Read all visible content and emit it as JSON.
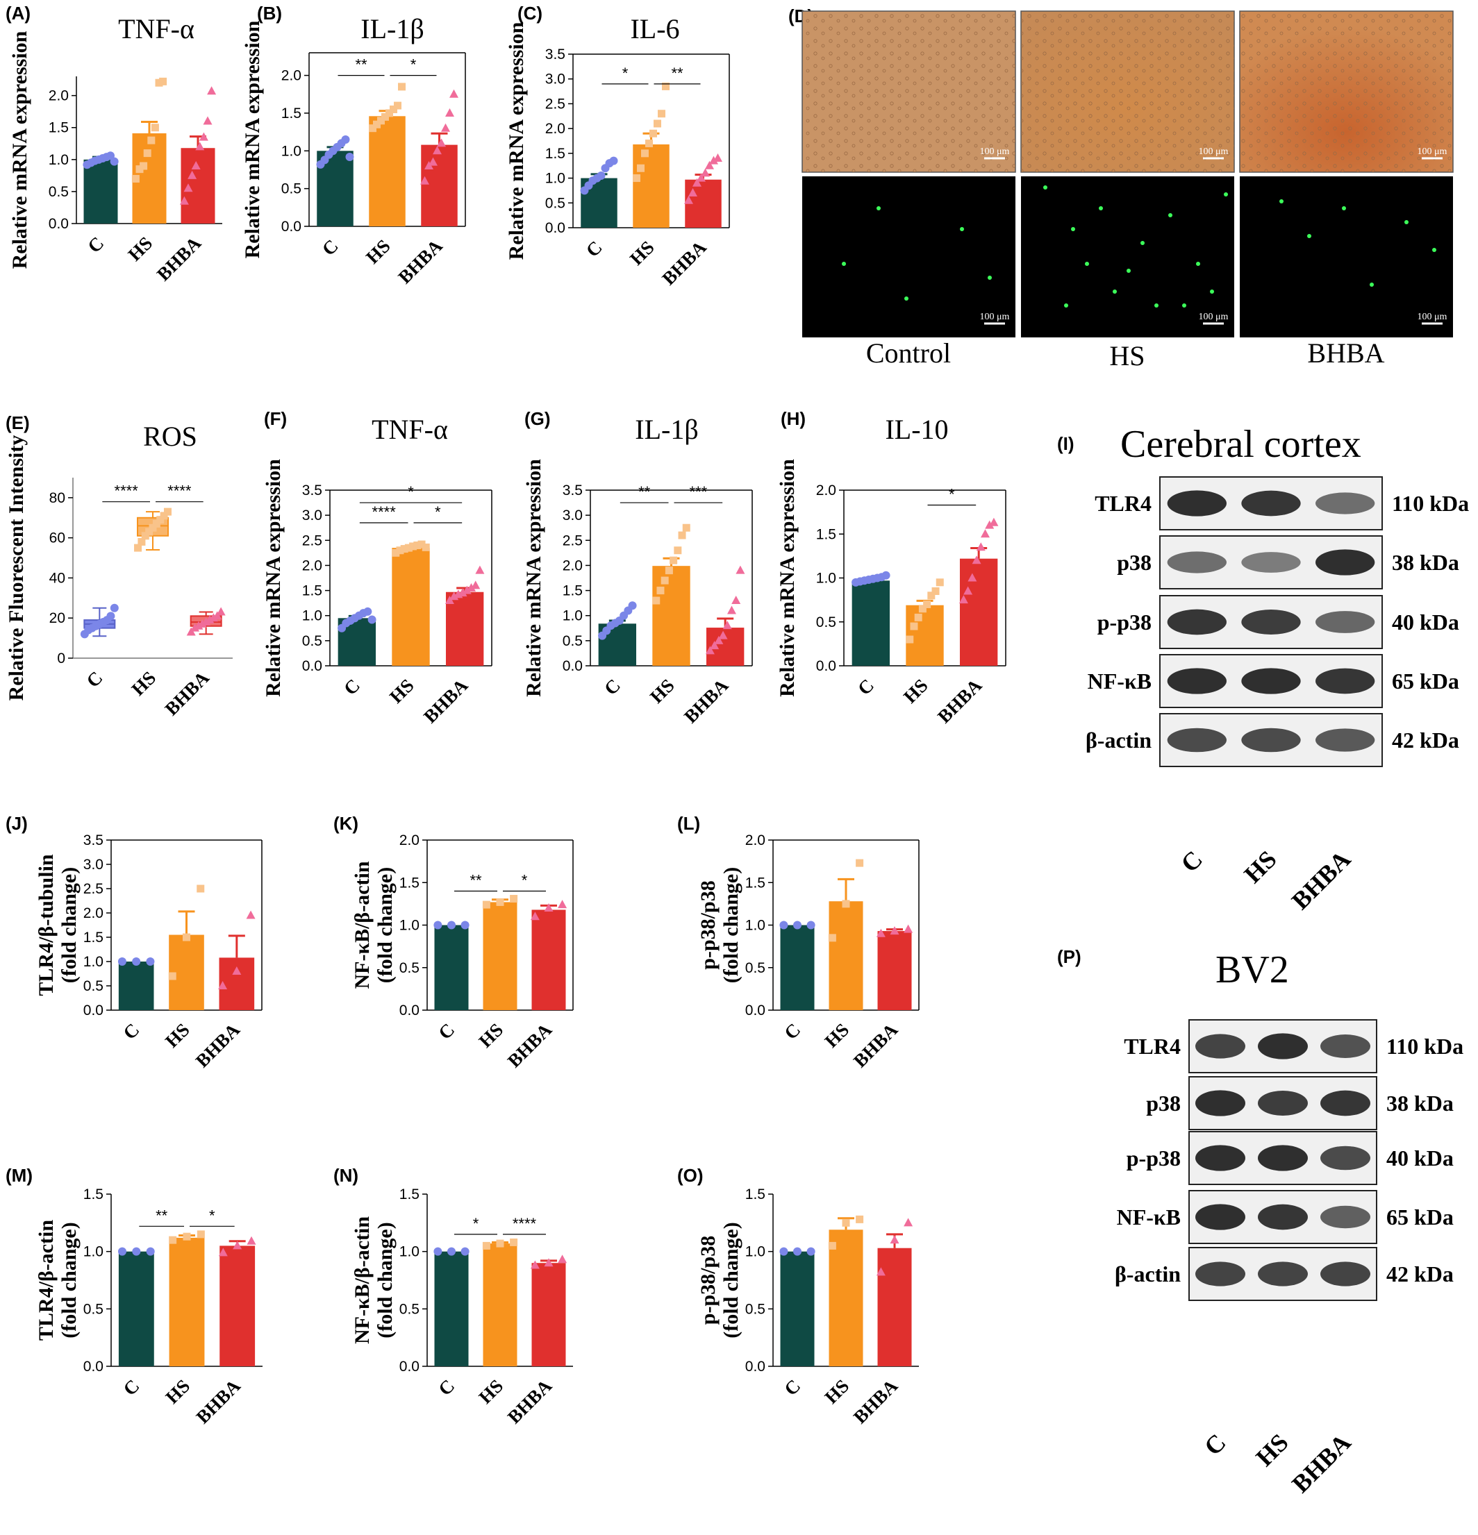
{
  "colors": {
    "C": "#0f4a44",
    "HS": "#f7931e",
    "BHBA": "#e0302e",
    "C_pt": "#7b86e8",
    "HS_pt": "#f9c38a",
    "BHBA_pt": "#f06c9a"
  },
  "chart_data": [
    {
      "id": "A",
      "type": "bar",
      "label": "(A)",
      "title": "TNF-α",
      "ylabel": "Relative mRNA expression",
      "categories": [
        "C",
        "HS",
        "BHBA"
      ],
      "values": [
        1.0,
        1.41,
        1.18
      ],
      "errors": [
        0.04,
        0.18,
        0.18
      ],
      "ylim": [
        0,
        2.3
      ],
      "ticks": [
        "0.0",
        "0.5",
        "1.0",
        "1.5",
        "2.0"
      ],
      "tickvals": [
        0,
        0.5,
        1,
        1.5,
        2
      ],
      "points": [
        [
          0.92,
          0.95,
          0.98,
          1.0,
          1.02,
          1.04,
          1.06,
          0.97
        ],
        [
          0.7,
          0.85,
          0.9,
          1.1,
          1.3,
          1.5,
          2.2,
          2.22
        ],
        [
          0.35,
          0.55,
          0.75,
          0.9,
          1.2,
          1.35,
          1.6,
          2.07
        ]
      ],
      "sig": []
    },
    {
      "id": "B",
      "type": "bar",
      "label": "(B)",
      "title": "IL-1β",
      "ylabel": "Relative mRNA expression",
      "categories": [
        "C",
        "HS",
        "BHBA"
      ],
      "values": [
        1.0,
        1.46,
        1.08
      ],
      "errors": [
        0.05,
        0.07,
        0.15
      ],
      "ylim": [
        0,
        2.3
      ],
      "ticks": [
        "0.0",
        "0.5",
        "1.0",
        "1.5",
        "2.0"
      ],
      "tickvals": [
        0,
        0.5,
        1,
        1.5,
        2
      ],
      "points": [
        [
          0.82,
          0.88,
          0.95,
          1.0,
          1.05,
          1.1,
          1.15,
          0.92
        ],
        [
          1.3,
          1.35,
          1.4,
          1.45,
          1.5,
          1.55,
          1.6,
          1.85
        ],
        [
          0.6,
          0.8,
          0.85,
          1.0,
          1.1,
          1.3,
          1.5,
          1.75
        ]
      ],
      "sig": [
        {
          "from": 0,
          "to": 1,
          "y": 2.0,
          "text": "**"
        },
        {
          "from": 1,
          "to": 2,
          "y": 2.0,
          "text": "*"
        }
      ]
    },
    {
      "id": "C",
      "type": "bar",
      "label": "(C)",
      "title": "IL-6",
      "ylabel": "Relative mRNA expression",
      "categories": [
        "C",
        "HS",
        "BHBA"
      ],
      "values": [
        1.0,
        1.68,
        0.97
      ],
      "errors": [
        0.08,
        0.22,
        0.1
      ],
      "ylim": [
        0,
        3.5
      ],
      "ticks": [
        "0.0",
        "0.5",
        "1.0",
        "1.5",
        "2.0",
        "2.5",
        "3.0",
        "3.5"
      ],
      "tickvals": [
        0,
        0.5,
        1,
        1.5,
        2,
        2.5,
        3,
        3.5
      ],
      "points": [
        [
          0.75,
          0.85,
          0.95,
          1.0,
          1.05,
          1.2,
          1.3,
          1.35
        ],
        [
          1.0,
          1.2,
          1.5,
          1.7,
          1.9,
          2.1,
          2.3,
          2.85
        ],
        [
          0.55,
          0.7,
          0.9,
          1.0,
          1.1,
          1.25,
          1.35,
          1.4
        ]
      ],
      "sig": [
        {
          "from": 0,
          "to": 1,
          "y": 2.9,
          "text": "*"
        },
        {
          "from": 1,
          "to": 2,
          "y": 2.9,
          "text": "**"
        }
      ]
    },
    {
      "id": "F",
      "type": "bar",
      "label": "(F)",
      "title": "TNF-α",
      "ylabel": "Relative mRNA expression",
      "categories": [
        "C",
        "HS",
        "BHBA"
      ],
      "values": [
        0.95,
        2.35,
        1.47
      ],
      "errors": [
        0.04,
        0.03,
        0.08
      ],
      "ylim": [
        0,
        3.5
      ],
      "ticks": [
        "0.0",
        "0.5",
        "1.0",
        "1.5",
        "2.0",
        "2.5",
        "3.0",
        "3.5"
      ],
      "tickvals": [
        0,
        0.5,
        1,
        1.5,
        2,
        2.5,
        3,
        3.5
      ],
      "points": [
        [
          0.75,
          0.85,
          0.9,
          0.95,
          1.0,
          1.05,
          1.08,
          0.92
        ],
        [
          2.25,
          2.3,
          2.33,
          2.35,
          2.38,
          2.4,
          2.42,
          2.36
        ],
        [
          1.3,
          1.38,
          1.42,
          1.45,
          1.5,
          1.55,
          1.6,
          1.9
        ]
      ],
      "sig": [
        {
          "from": 0,
          "to": 2,
          "y": 3.25,
          "text": "*"
        },
        {
          "from": 0,
          "to": 1,
          "y": 2.85,
          "text": "****"
        },
        {
          "from": 1,
          "to": 2,
          "y": 2.85,
          "text": "*"
        }
      ]
    },
    {
      "id": "G",
      "type": "bar",
      "label": "(G)",
      "title": "IL-1β",
      "ylabel": "Relative mRNA expression",
      "categories": [
        "C",
        "HS",
        "BHBA"
      ],
      "values": [
        0.84,
        1.99,
        0.76
      ],
      "errors": [
        0.06,
        0.15,
        0.18
      ],
      "ylim": [
        0,
        3.5
      ],
      "ticks": [
        "0.0",
        "0.5",
        "1.0",
        "1.5",
        "2.0",
        "2.5",
        "3.0",
        "3.5"
      ],
      "tickvals": [
        0,
        0.5,
        1,
        1.5,
        2,
        2.5,
        3,
        3.5
      ],
      "points": [
        [
          0.6,
          0.7,
          0.8,
          0.85,
          0.9,
          1.0,
          1.1,
          1.2
        ],
        [
          1.3,
          1.5,
          1.7,
          1.9,
          2.1,
          2.3,
          2.6,
          2.75
        ],
        [
          0.3,
          0.4,
          0.5,
          0.6,
          0.8,
          1.1,
          1.3,
          1.9
        ]
      ],
      "sig": [
        {
          "from": 0,
          "to": 1,
          "y": 3.25,
          "text": "**"
        },
        {
          "from": 1,
          "to": 2,
          "y": 3.25,
          "text": "***"
        }
      ]
    },
    {
      "id": "H",
      "type": "bar",
      "label": "(H)",
      "title": "IL-10",
      "ylabel": "Relative mRNA expression",
      "categories": [
        "C",
        "HS",
        "BHBA"
      ],
      "values": [
        0.97,
        0.69,
        1.22
      ],
      "errors": [
        0.01,
        0.05,
        0.12
      ],
      "ylim": [
        0,
        2.0
      ],
      "ticks": [
        "0.0",
        "0.5",
        "1.0",
        "1.5",
        "2.0"
      ],
      "tickvals": [
        0,
        0.5,
        1,
        1.5,
        2
      ],
      "points": [
        [
          0.95,
          0.96,
          0.97,
          0.98,
          0.99,
          1.0,
          1.01,
          1.03
        ],
        [
          0.3,
          0.45,
          0.55,
          0.65,
          0.7,
          0.8,
          0.85,
          0.95
        ],
        [
          0.75,
          0.85,
          1.0,
          1.2,
          1.35,
          1.5,
          1.6,
          1.63
        ]
      ],
      "sig": [
        {
          "from": 1,
          "to": 2,
          "y": 1.83,
          "text": "*"
        }
      ]
    },
    {
      "id": "J",
      "type": "bar",
      "label": "(J)",
      "title": "",
      "ylabel": "TLR4/β-tubulin (fold change)",
      "categories": [
        "C",
        "HS",
        "BHBA"
      ],
      "values": [
        1.0,
        1.55,
        1.08
      ],
      "errors": [
        0.0,
        0.48,
        0.45
      ],
      "ylim": [
        0,
        3.5
      ],
      "ticks": [
        "0.0",
        "0.5",
        "1.0",
        "1.5",
        "2.0",
        "2.5",
        "3.0",
        "3.5"
      ],
      "tickvals": [
        0,
        0.5,
        1,
        1.5,
        2,
        2.5,
        3,
        3.5
      ],
      "points": [
        [
          1.0,
          1.0,
          1.0
        ],
        [
          0.7,
          1.5,
          2.5
        ],
        [
          0.5,
          0.8,
          1.95
        ]
      ],
      "sig": []
    },
    {
      "id": "K",
      "type": "bar",
      "label": "(K)",
      "title": "",
      "ylabel": "NF-κB/β-actin (fold change)",
      "categories": [
        "C",
        "HS",
        "BHBA"
      ],
      "values": [
        1.0,
        1.27,
        1.18
      ],
      "errors": [
        0.0,
        0.03,
        0.05
      ],
      "ylim": [
        0,
        2.0
      ],
      "ticks": [
        "0.0",
        "0.5",
        "1.0",
        "1.5",
        "2.0"
      ],
      "tickvals": [
        0,
        0.5,
        1,
        1.5,
        2
      ],
      "points": [
        [
          1.0,
          1.0,
          1.0
        ],
        [
          1.24,
          1.27,
          1.31
        ],
        [
          1.1,
          1.2,
          1.24
        ]
      ],
      "sig": [
        {
          "from": 0,
          "to": 1,
          "y": 1.4,
          "text": "**"
        },
        {
          "from": 1,
          "to": 2,
          "y": 1.4,
          "text": "*"
        }
      ]
    },
    {
      "id": "L",
      "type": "bar",
      "label": "(L)",
      "title": "",
      "ylabel": "p-p38/p38 (fold change)",
      "categories": [
        "C",
        "HS",
        "BHBA"
      ],
      "values": [
        1.0,
        1.28,
        0.93
      ],
      "errors": [
        0.0,
        0.26,
        0.02
      ],
      "ylim": [
        0,
        2.0
      ],
      "ticks": [
        "0.0",
        "0.5",
        "1.0",
        "1.5",
        "2.0"
      ],
      "tickvals": [
        0,
        0.5,
        1,
        1.5,
        2
      ],
      "points": [
        [
          1.0,
          1.0,
          1.0
        ],
        [
          0.85,
          1.25,
          1.73
        ],
        [
          0.9,
          0.93,
          0.95
        ]
      ],
      "sig": []
    },
    {
      "id": "M",
      "type": "bar",
      "label": "(M)",
      "title": "",
      "ylabel": "TLR4/β-actin (fold change)",
      "categories": [
        "C",
        "HS",
        "BHBA"
      ],
      "values": [
        1.0,
        1.12,
        1.05
      ],
      "errors": [
        0.0,
        0.02,
        0.04
      ],
      "ylim": [
        0,
        1.5
      ],
      "ticks": [
        "0.0",
        "0.5",
        "1.0",
        "1.5"
      ],
      "tickvals": [
        0,
        0.5,
        1,
        1.5
      ],
      "points": [
        [
          1.0,
          1.0,
          1.0
        ],
        [
          1.1,
          1.13,
          1.15
        ],
        [
          0.99,
          1.05,
          1.09
        ]
      ],
      "sig": [
        {
          "from": 0,
          "to": 1,
          "y": 1.22,
          "text": "**"
        },
        {
          "from": 1,
          "to": 2,
          "y": 1.22,
          "text": "*"
        }
      ]
    },
    {
      "id": "N",
      "type": "bar",
      "label": "(N)",
      "title": "",
      "ylabel": "NF-κB/β-actin (fold change)",
      "categories": [
        "C",
        "HS",
        "BHBA"
      ],
      "values": [
        1.0,
        1.07,
        0.9
      ],
      "errors": [
        0.0,
        0.01,
        0.02
      ],
      "ylim": [
        0,
        1.5
      ],
      "ticks": [
        "0.0",
        "0.5",
        "1.0",
        "1.5"
      ],
      "tickvals": [
        0,
        0.5,
        1,
        1.5
      ],
      "points": [
        [
          1.0,
          1.0,
          1.0
        ],
        [
          1.05,
          1.07,
          1.08
        ],
        [
          0.88,
          0.9,
          0.93
        ]
      ],
      "sig": [
        {
          "from": 0,
          "to": 1,
          "y": 1.15,
          "text": "*"
        },
        {
          "from": 1,
          "to": 2,
          "y": 1.15,
          "text": "****"
        }
      ]
    },
    {
      "id": "O",
      "type": "bar",
      "label": "(O)",
      "title": "",
      "ylabel": "p-p38/p38 (fold change)",
      "categories": [
        "C",
        "HS",
        "BHBA"
      ],
      "values": [
        1.0,
        1.19,
        1.03
      ],
      "errors": [
        0.0,
        0.1,
        0.12
      ],
      "ylim": [
        0,
        1.5
      ],
      "ticks": [
        "0.0",
        "0.5",
        "1.0",
        "1.5"
      ],
      "tickvals": [
        0,
        0.5,
        1,
        1.5
      ],
      "points": [
        [
          1.0,
          1.0,
          1.0
        ],
        [
          1.05,
          1.25,
          1.28
        ],
        [
          0.82,
          1.1,
          1.25
        ]
      ],
      "sig": []
    },
    {
      "id": "E",
      "type": "box",
      "label": "(E)",
      "title": "ROS",
      "ylabel": "Relative Fluorescent Intensity",
      "categories": [
        "C",
        "HS",
        "BHBA"
      ],
      "ylim": [
        0,
        90
      ],
      "ticks": [
        "0",
        "20",
        "40",
        "60",
        "80"
      ],
      "tickvals": [
        0,
        20,
        40,
        60,
        80
      ],
      "boxes": [
        {
          "min": 11,
          "q1": 15,
          "median": 17,
          "q3": 19,
          "max": 25
        },
        {
          "min": 54,
          "q1": 61,
          "median": 66,
          "q3": 70,
          "max": 73
        },
        {
          "min": 12,
          "q1": 16,
          "median": 18,
          "q3": 21,
          "max": 23
        }
      ],
      "points": [
        [
          12,
          14,
          15,
          16,
          17,
          18,
          19,
          21,
          25
        ],
        [
          55,
          58,
          61,
          63,
          65,
          67,
          69,
          71,
          73
        ],
        [
          13,
          15,
          16,
          17,
          18,
          19,
          20,
          21,
          23
        ]
      ],
      "sig": [
        {
          "from": 0,
          "to": 1,
          "y": 78,
          "text": "****"
        },
        {
          "from": 1,
          "to": 2,
          "y": 78,
          "text": "****"
        }
      ]
    }
  ],
  "panel_d": {
    "label": "(D)",
    "columns": [
      "Control",
      "HS",
      "BHBA"
    ],
    "scalebar": "100 μm"
  },
  "western_i": {
    "label": "(I)",
    "title": "Cerebral cortex",
    "proteins": [
      {
        "name": "TLR4",
        "kda": "110 kDa"
      },
      {
        "name": "p38",
        "kda": "38 kDa"
      },
      {
        "name": "p-p38",
        "kda": "40 kDa"
      },
      {
        "name": "NF-κB",
        "kda": "65 kDa"
      },
      {
        "name": "β-actin",
        "kda": "42 kDa"
      }
    ],
    "categories": [
      "C",
      "HS",
      "BHBA"
    ]
  },
  "western_p": {
    "label": "(P)",
    "title": "BV2",
    "proteins": [
      {
        "name": "TLR4",
        "kda": "110 kDa"
      },
      {
        "name": "p38",
        "kda": "38 kDa"
      },
      {
        "name": "p-p38",
        "kda": "40 kDa"
      },
      {
        "name": "NF-κB",
        "kda": "65 kDa"
      },
      {
        "name": "β-actin",
        "kda": "42 kDa"
      }
    ],
    "categories": [
      "C",
      "HS",
      "BHBA"
    ]
  }
}
